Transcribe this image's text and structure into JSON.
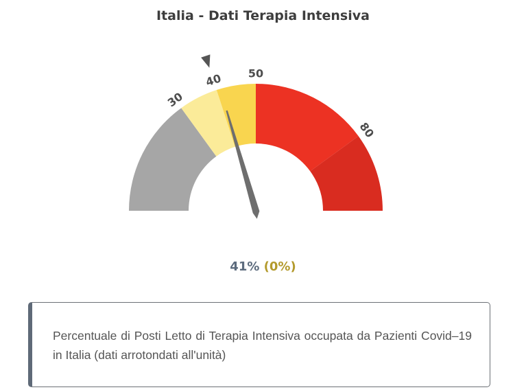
{
  "title": "Italia - Dati Terapia Intensiva",
  "chart_data": {
    "type": "gauge",
    "title": "Italia - Dati Terapia Intensiva",
    "value": 41,
    "value_label": "41%",
    "change_label": "(0%)",
    "range": [
      0,
      100
    ],
    "bands": [
      {
        "from": 0,
        "to": 30,
        "color": "#a6a6a6"
      },
      {
        "from": 30,
        "to": 40,
        "color": "#fbeb99"
      },
      {
        "from": 40,
        "to": 50,
        "color": "#f9d54f"
      },
      {
        "from": 50,
        "to": 80,
        "color": "#ec3223"
      },
      {
        "from": 80,
        "to": 100,
        "color": "#d92c20"
      }
    ],
    "tick_labels": [
      {
        "value": 30,
        "label": "30"
      },
      {
        "value": 40,
        "label": "40"
      },
      {
        "value": 50,
        "label": "50"
      },
      {
        "value": 80,
        "label": "80"
      }
    ],
    "marker_value": 40,
    "needle_color": "#6e6e6e",
    "marker_color": "#555555",
    "tick_label_color": "#4d4d4d"
  },
  "description": "Percentuale di Posti Letto di Terapia Intensiva occupata da Pazienti Covid–19 in Italia (dati arrotondati all'unità)"
}
